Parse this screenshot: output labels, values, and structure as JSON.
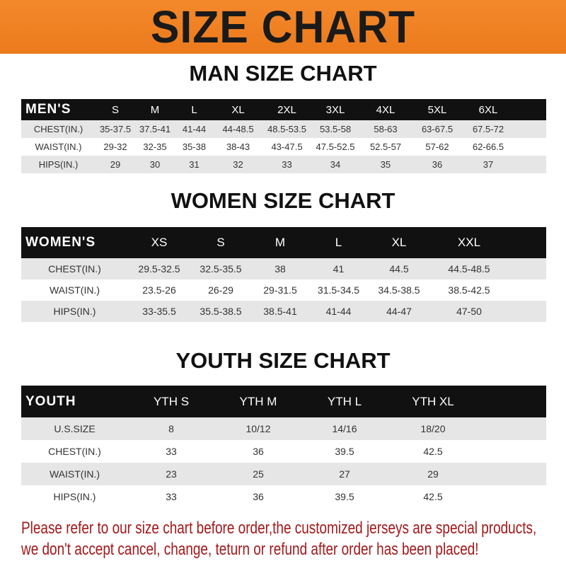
{
  "banner": "SIZE CHART",
  "men": {
    "title": "MAN SIZE CHART",
    "header": [
      "MEN'S",
      "S",
      "M",
      "L",
      "XL",
      "2XL",
      "3XL",
      "4XL",
      "5XL",
      "6XL"
    ],
    "rows": [
      [
        "CHEST(IN.)",
        "35-37.5",
        "37.5-41",
        "41-44",
        "44-48.5",
        "48.5-53.5",
        "53.5-58",
        "58-63",
        "63-67.5",
        "67.5-72"
      ],
      [
        "WAIST(IN.)",
        "29-32",
        "32-35",
        "35-38",
        "38-43",
        "43-47.5",
        "47.5-52.5",
        "52.5-57",
        "57-62",
        "62-66.5"
      ],
      [
        "HIPS(IN.)",
        "29",
        "30",
        "31",
        "32",
        "33",
        "34",
        "35",
        "36",
        "37"
      ]
    ]
  },
  "women": {
    "title": "WOMEN SIZE CHART",
    "header": [
      "WOMEN'S",
      "XS",
      "S",
      "M",
      "L",
      "XL",
      "XXL"
    ],
    "rows": [
      [
        "CHEST(IN.)",
        "29.5-32.5",
        "32.5-35.5",
        "38",
        "41",
        "44.5",
        "44.5-48.5"
      ],
      [
        "WAIST(IN.)",
        "23.5-26",
        "26-29",
        "29-31.5",
        "31.5-34.5",
        "34.5-38.5",
        "38.5-42.5"
      ],
      [
        "HIPS(IN.)",
        "33-35.5",
        "35.5-38.5",
        "38.5-41",
        "41-44",
        "44-47",
        "47-50"
      ]
    ]
  },
  "youth": {
    "title": "YOUTH SIZE CHART",
    "header": [
      "YOUTH",
      "YTH S",
      "YTH M",
      "YTH L",
      "YTH XL"
    ],
    "rows": [
      [
        "U.S.SIZE",
        "8",
        "10/12",
        "14/16",
        "18/20"
      ],
      [
        "CHEST(IN.)",
        "33",
        "36",
        "39.5",
        "42.5"
      ],
      [
        "WAIST(IN.)",
        "23",
        "25",
        "27",
        "29"
      ],
      [
        "HIPS(IN.)",
        "33",
        "36",
        "39.5",
        "42.5"
      ]
    ]
  },
  "notice": [
    "Please refer to our size chart before order,the customized jerseys are special products,",
    "we don't accept cancel, change, teturn or refund after order has been placed!"
  ],
  "colors": {
    "banner": "#ef7f20",
    "header_row": "#111111",
    "stripe": "#e6e6e6",
    "notice": "#a3191b"
  }
}
